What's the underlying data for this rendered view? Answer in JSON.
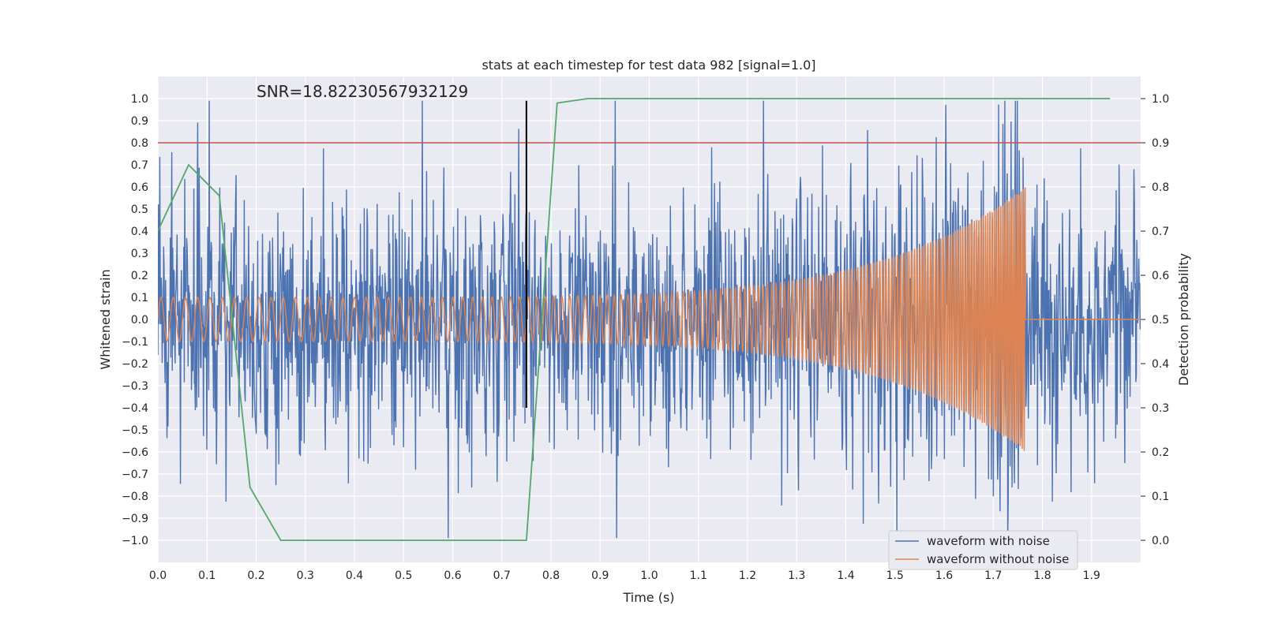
{
  "chart_data": {
    "type": "line",
    "title": "stats at each timestep for test data 982 [signal=1.0]",
    "annotation": "SNR=18.82230567932129",
    "xlabel": "Time (s)",
    "ylabel_left": "Whitened strain",
    "ylabel_right": "Detection probability",
    "xlim": [
      0.0,
      2.0
    ],
    "ylim_left": [
      -1.1,
      1.1
    ],
    "ylim_right": [
      -0.05,
      1.05
    ],
    "x_ticks": [
      "0.0",
      "0.1",
      "0.2",
      "0.3",
      "0.4",
      "0.5",
      "0.6",
      "0.7",
      "0.8",
      "0.9",
      "1.0",
      "1.1",
      "1.2",
      "1.3",
      "1.4",
      "1.5",
      "1.6",
      "1.7",
      "1.8",
      "1.9"
    ],
    "y_left_ticks": [
      "1.0",
      "0.9",
      "0.8",
      "0.7",
      "0.6",
      "0.5",
      "0.4",
      "0.3",
      "0.2",
      "0.1",
      "0.0",
      "−0.1",
      "−0.2",
      "−0.3",
      "−0.4",
      "−0.5",
      "−0.6",
      "−0.7",
      "−0.8",
      "−0.9",
      "−1.0"
    ],
    "y_right_ticks": [
      "1.0",
      "0.9",
      "0.8",
      "0.7",
      "0.6",
      "0.5",
      "0.4",
      "0.3",
      "0.2",
      "0.1",
      "0.0"
    ],
    "grid": true,
    "legend_position": "lower-right",
    "series": [
      {
        "name": "waveform with noise",
        "axis": "left",
        "color": "#4c72b0",
        "description": "noisy whitened strain, approx. white noise between -1.0 and 1.0 over 0.0-2.0 s"
      },
      {
        "name": "waveform without noise",
        "axis": "left",
        "color": "#dd8452",
        "chirp": {
          "t_start": 0.0,
          "t_merger": 1.765,
          "amp_start": 0.1,
          "amp_peak": 0.6,
          "freq_start_hz": 40,
          "freq_end_hz": 250
        }
      },
      {
        "axis": "right",
        "color": "#55a868",
        "x": [
          0.0,
          0.0625,
          0.125,
          0.1875,
          0.25,
          0.3125,
          0.375,
          0.4375,
          0.5,
          0.5625,
          0.625,
          0.6875,
          0.75,
          0.8125,
          0.875,
          0.9375,
          1.0,
          1.0625,
          1.125,
          1.1875,
          1.25,
          1.3125,
          1.375,
          1.4375,
          1.5,
          1.5625,
          1.625,
          1.6875,
          1.75,
          1.8125,
          1.875,
          1.9375
        ],
        "y": [
          0.7,
          0.85,
          0.78,
          0.12,
          0.0,
          0.0,
          0.0,
          0.0,
          0.0,
          0.0,
          0.0,
          0.0,
          0.0,
          0.99,
          1.0,
          1.0,
          1.0,
          1.0,
          1.0,
          1.0,
          1.0,
          1.0,
          1.0,
          1.0,
          1.0,
          1.0,
          1.0,
          1.0,
          1.0,
          1.0,
          1.0,
          1.0
        ]
      }
    ],
    "threshold_line": {
      "axis": "right",
      "value": 0.9,
      "color": "#c44e52"
    },
    "vertical_marker": {
      "x": 0.75,
      "y_range": [
        -0.4,
        0.99
      ],
      "color": "#000000"
    }
  }
}
